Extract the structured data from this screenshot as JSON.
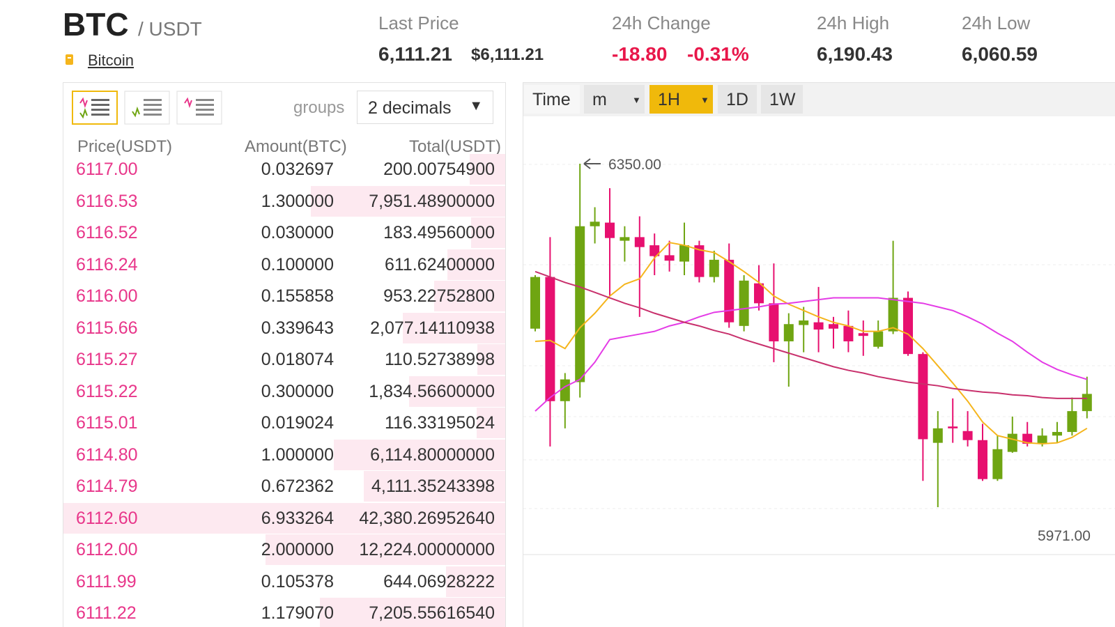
{
  "header": {
    "base": "BTC",
    "quote": "/ USDT",
    "coin_name": "Bitcoin",
    "stats": [
      {
        "label": "Last Price",
        "values": [
          "6,111.21",
          "$6,111.21"
        ]
      },
      {
        "label": "24h Change",
        "values": [
          "-18.80",
          "-0.31%"
        ]
      },
      {
        "label": "24h High",
        "values": [
          "6,190.43"
        ]
      },
      {
        "label": "24h Low",
        "values": [
          "6,060.59"
        ]
      }
    ]
  },
  "order_book": {
    "groups_label": "groups",
    "decimals": "2 decimals",
    "columns": [
      "Price(USDT)",
      "Amount(BTC)",
      "Total(USDT)"
    ],
    "rows": [
      [
        "6117.00",
        "0.032697",
        "200.00754900"
      ],
      [
        "6116.53",
        "1.300000",
        "7,951.48900000"
      ],
      [
        "6116.52",
        "0.030000",
        "183.49560000"
      ],
      [
        "6116.24",
        "0.100000",
        "611.62400000"
      ],
      [
        "6116.00",
        "0.155858",
        "953.22752800"
      ],
      [
        "6115.66",
        "0.339643",
        "2,077.14110938"
      ],
      [
        "6115.27",
        "0.018074",
        "110.52738998"
      ],
      [
        "6115.22",
        "0.300000",
        "1,834.56600000"
      ],
      [
        "6115.01",
        "0.019024",
        "116.33195024"
      ],
      [
        "6114.80",
        "1.000000",
        "6,114.80000000"
      ],
      [
        "6114.79",
        "0.672362",
        "4,111.35243398"
      ],
      [
        "6112.60",
        "6.933264",
        "42,380.26952640"
      ],
      [
        "6112.00",
        "2.000000",
        "12,224.00000000"
      ],
      [
        "6111.99",
        "0.105378",
        "644.06928222"
      ],
      [
        "6111.22",
        "1.179070",
        "7,205.55616540"
      ]
    ]
  },
  "chart_tabs": [
    "Time",
    "m",
    "1H",
    "1D",
    "1W"
  ],
  "chart_data": {
    "type": "candlestick",
    "up_color": "#6fa512",
    "down_color": "#e7106f",
    "open": [
      6168,
      6225,
      6088,
      6109,
      6281,
      6285,
      6265,
      6269,
      6260,
      6249,
      6242,
      6260,
      6225,
      6244,
      6171,
      6218,
      6196,
      6154,
      6172,
      6175,
      6173,
      6171,
      6163,
      6148,
      6165,
      6202,
      6140,
      6042,
      6060,
      6055,
      6045,
      6002,
      6032,
      6052,
      6041,
      6050,
      6054,
      6077
    ],
    "high": [
      6227,
      6269,
      6119,
      6350,
      6302,
      6323,
      6281,
      6292,
      6273,
      6265,
      6285,
      6265,
      6254,
      6262,
      6227,
      6238,
      6240,
      6185,
      6192,
      6214,
      6181,
      6188,
      6177,
      6177,
      6265,
      6209,
      6142,
      6077,
      6091,
      6077,
      6063,
      6050,
      6071,
      6065,
      6058,
      6065,
      6092,
      6115
    ],
    "low": [
      6165,
      6038,
      6058,
      6092,
      6262,
      6204,
      6242,
      6181,
      6227,
      6231,
      6227,
      6219,
      6219,
      6169,
      6165,
      6188,
      6131,
      6104,
      6142,
      6142,
      6146,
      6142,
      6138,
      6146,
      6162,
      6138,
      6000,
      5971,
      6042,
      6038,
      6000,
      6000,
      6031,
      6038,
      6038,
      6042,
      6050,
      6069
    ],
    "close": [
      6225,
      6088,
      6112,
      6281,
      6286,
      6268,
      6269,
      6258,
      6248,
      6243,
      6260,
      6225,
      6244,
      6175,
      6221,
      6196,
      6154,
      6173,
      6177,
      6167,
      6168,
      6154,
      6160,
      6165,
      6202,
      6140,
      6046,
      6058,
      6058,
      6045,
      6002,
      6035,
      6052,
      6041,
      6050,
      6054,
      6077,
      6096
    ],
    "lines": [
      {
        "color": "#f5b51c",
        "values": [
          6154,
          6155,
          6146,
          6169,
          6185,
          6204,
          6217,
          6223,
          6246,
          6263,
          6260,
          6255,
          6252,
          6242,
          6231,
          6219,
          6204,
          6195,
          6188,
          6181,
          6175,
          6171,
          6165,
          6165,
          6169,
          6162,
          6146,
          6127,
          6108,
          6088,
          6065,
          6050,
          6046,
          6042,
          6041,
          6042,
          6048,
          6058
        ]
      },
      {
        "color": "#e43be6",
        "values": [
          6077,
          6092,
          6104,
          6112,
          6131,
          6156,
          6159,
          6162,
          6165,
          6171,
          6175,
          6181,
          6186,
          6188,
          6190,
          6192,
          6195,
          6196,
          6198,
          6200,
          6202,
          6202,
          6202,
          6202,
          6200,
          6198,
          6196,
          6192,
          6188,
          6181,
          6173,
          6163,
          6154,
          6142,
          6131,
          6123,
          6117,
          6112
        ]
      },
      {
        "color": "#c8306c",
        "values": [
          6231,
          6225,
          6219,
          6214,
          6208,
          6202,
          6196,
          6191,
          6185,
          6180,
          6175,
          6171,
          6166,
          6162,
          6156,
          6151,
          6146,
          6141,
          6136,
          6131,
          6126,
          6122,
          6119,
          6115,
          6112,
          6109,
          6107,
          6105,
          6102,
          6100,
          6098,
          6097,
          6095,
          6094,
          6092,
          6091,
          6091,
          6091
        ]
      }
    ],
    "annotations": [
      {
        "value": 6350,
        "label": "6350.00"
      },
      {
        "value": 5971,
        "label": "5971.00"
      }
    ]
  }
}
